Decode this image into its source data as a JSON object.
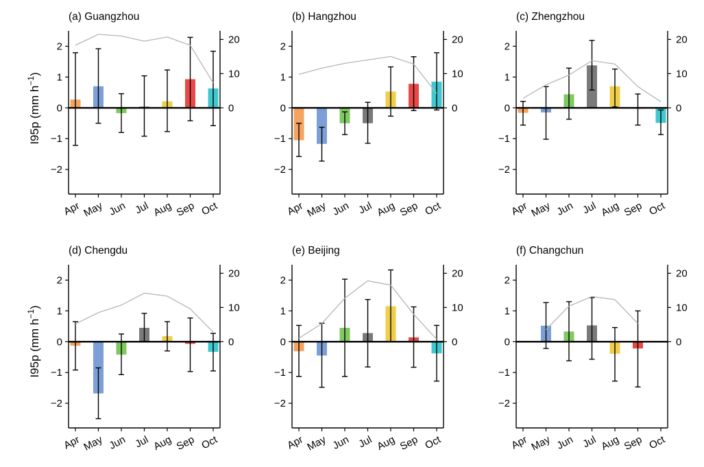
{
  "chart_data": {
    "type": "bar",
    "ylabel_main": "I95p (mm h",
    "ylabel_sup": "−1",
    "ylabel_close": ")",
    "categories": [
      "Apr",
      "May",
      "Jun",
      "Jul",
      "Aug",
      "Sep",
      "Oct"
    ],
    "bar_colors": [
      "#f4a460",
      "#7b9fd6",
      "#80c860",
      "#7a7a7a",
      "#efce4a",
      "#e84848",
      "#40c8d0"
    ],
    "count_line_color": "#b5b5b5",
    "left_ylim": [
      -2.8,
      2.5
    ],
    "left_yticks": [
      -2,
      -1,
      0,
      1,
      2
    ],
    "left_ytick_labels": [
      "−2",
      "−1",
      "0",
      "1",
      "2"
    ],
    "right_ylim": [
      -25.2,
      22.5
    ],
    "right_yticks": [
      0,
      10,
      20
    ],
    "right_ytick_labels": [
      "0",
      "10",
      "20"
    ],
    "panels": [
      {
        "title": "(a) Guangzhou",
        "values": [
          0.27,
          0.7,
          -0.17,
          0.04,
          0.21,
          0.93,
          0.63
        ],
        "err_low": [
          -1.22,
          -0.5,
          -0.8,
          -0.92,
          -0.77,
          -0.42,
          -0.58
        ],
        "err_high": [
          1.79,
          1.92,
          0.46,
          1.04,
          1.23,
          2.29,
          1.84
        ],
        "count": [
          18.3,
          21.5,
          21.0,
          19.5,
          20.7,
          18.3,
          7.3
        ]
      },
      {
        "title": "(b) Hangzhou",
        "values": [
          -1.05,
          -1.17,
          -0.5,
          -0.5,
          0.53,
          0.78,
          0.85
        ],
        "err_low": [
          -1.58,
          -1.73,
          -0.87,
          -1.15,
          -0.27,
          -0.09,
          -0.07
        ],
        "err_high": [
          -0.5,
          -0.63,
          -0.13,
          0.18,
          1.33,
          1.66,
          1.79
        ],
        "count": [
          9.8,
          11.6,
          13.0,
          14.0,
          15.0,
          12.8,
          4.2
        ]
      },
      {
        "title": "(c) Zhengzhou",
        "values": [
          -0.16,
          -0.15,
          0.44,
          1.38,
          0.7,
          -0.03,
          -0.49
        ],
        "err_low": [
          -0.56,
          -1.02,
          -0.37,
          0.58,
          0.03,
          -0.56,
          -0.87
        ],
        "err_high": [
          0.21,
          0.69,
          1.29,
          2.19,
          1.26,
          0.45,
          -0.07
        ],
        "count": [
          2.8,
          6.7,
          9.6,
          13.8,
          12.8,
          6.2,
          1.8
        ]
      },
      {
        "title": "(d) Chengdu",
        "values": [
          -0.13,
          -1.68,
          -0.42,
          0.45,
          0.18,
          -0.07,
          -0.33
        ],
        "err_low": [
          -0.92,
          -2.5,
          -1.07,
          0.0,
          -0.3,
          -0.97,
          -0.95
        ],
        "err_high": [
          0.65,
          -0.85,
          0.25,
          0.92,
          0.65,
          0.77,
          0.27
        ],
        "count": [
          5.2,
          8.5,
          10.7,
          14.2,
          13.3,
          9.6,
          2.8
        ]
      },
      {
        "title": "(e) Beijing",
        "values": [
          -0.31,
          -0.45,
          0.45,
          0.28,
          1.15,
          0.14,
          -0.38
        ],
        "err_low": [
          -1.13,
          -1.48,
          -1.13,
          -0.82,
          0.0,
          -0.83,
          -1.28
        ],
        "err_high": [
          0.53,
          0.6,
          2.03,
          1.37,
          2.33,
          1.13,
          0.53
        ],
        "count": [
          1.0,
          5.3,
          12.7,
          17.8,
          16.5,
          8.0,
          0.7
        ]
      },
      {
        "title": "(f) Changchun",
        "values": [
          null,
          0.52,
          0.33,
          0.53,
          -0.39,
          -0.22,
          null
        ],
        "err_low": [
          null,
          -0.22,
          -0.62,
          -0.57,
          -1.28,
          -1.47,
          null
        ],
        "err_high": [
          null,
          1.27,
          1.3,
          1.43,
          0.46,
          1.0,
          null
        ],
        "count": [
          null,
          3.5,
          10.4,
          13.2,
          12.3,
          5.3,
          null
        ]
      }
    ]
  }
}
